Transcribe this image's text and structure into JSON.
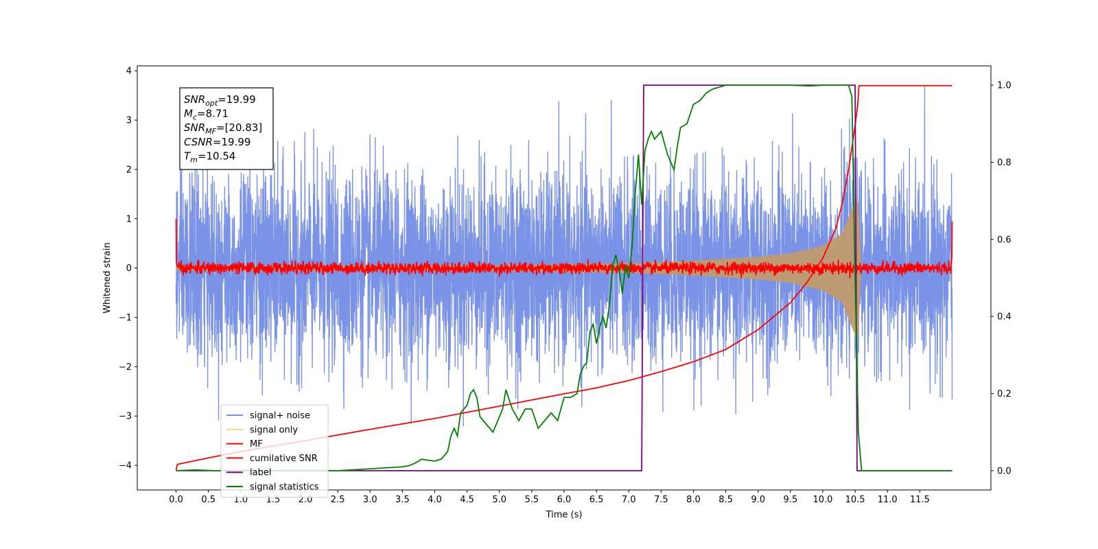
{
  "chart_data": {
    "type": "line",
    "xlabel": "Time (s)",
    "ylabel": "Whitened strain",
    "xlim": [
      -0.6,
      12.6
    ],
    "ylim": [
      -4.5,
      4.1
    ],
    "y2lim": [
      -0.05,
      1.05
    ],
    "x_ticks": [
      "0.0",
      "0.5",
      "1.0",
      "1.5",
      "2.0",
      "2.5",
      "3.0",
      "3.5",
      "4.0",
      "4.5",
      "5.0",
      "5.5",
      "6.0",
      "6.5",
      "7.0",
      "7.5",
      "8.0",
      "8.5",
      "9.0",
      "9.5",
      "10.0",
      "10.5",
      "11.0",
      "11.5"
    ],
    "y_ticks": [
      "4",
      "3",
      "2",
      "1",
      "0",
      "−1",
      "−2",
      "−3",
      "−4"
    ],
    "y2_ticks": [
      "1.0",
      "0.8",
      "0.6",
      "0.4",
      "0.2",
      "0.0"
    ],
    "annotation": {
      "lines": [
        {
          "base": "SNR",
          "sub": "opt",
          "value": "=19.99"
        },
        {
          "base": "M",
          "sub": "c",
          "value": "=8.71"
        },
        {
          "base": "SNR",
          "sub": "MF",
          "value": "=[20.83]"
        },
        {
          "base": "CSNR",
          "sub": "",
          "value": "=19.99"
        },
        {
          "base": "T",
          "sub": "m",
          "value": "=10.54"
        }
      ]
    },
    "legend": {
      "position": "lower-left",
      "entries": [
        {
          "label": "signal+ noise",
          "color": "#7b93e6"
        },
        {
          "label": "signal only",
          "color": "#f8d285"
        },
        {
          "label": "MF",
          "color": "#ff0000"
        },
        {
          "label": "cumilative SNR",
          "color": "#ff0000"
        },
        {
          "label": "label",
          "color": "#800080"
        },
        {
          "label": "signal statistics",
          "color": "#008000"
        }
      ]
    },
    "series": [
      {
        "name": "signal+ noise",
        "axis": "left",
        "color": "#7b93e6",
        "description_values": {
          "x_start": 0.0,
          "x_end": 12.0,
          "typical_range": [
            -2.5,
            2.5
          ],
          "extremes": [
            -4.0,
            3.7
          ]
        }
      },
      {
        "name": "signal only",
        "axis": "left",
        "color": "#c09a6e",
        "envelope": {
          "x": [
            0.0,
            5.0,
            6.0,
            7.0,
            8.0,
            9.0,
            9.5,
            10.0,
            10.3,
            10.45,
            10.54,
            10.6
          ],
          "amplitude": [
            0.05,
            0.06,
            0.08,
            0.1,
            0.15,
            0.23,
            0.3,
            0.45,
            0.7,
            1.2,
            1.5,
            0.0
          ]
        }
      },
      {
        "name": "MF",
        "axis": "left",
        "color": "#ff0000",
        "description_values": {
          "x_start": 0.0,
          "x_end": 12.0,
          "baseline": 0.0,
          "noise_amp": 0.06,
          "edge_peaks": [
            1.0,
            0.95
          ]
        }
      },
      {
        "name": "cumilative SNR",
        "axis": "left",
        "color": "#ff0000",
        "points": [
          [
            0.0,
            -4.1
          ],
          [
            0.02,
            -3.98
          ],
          [
            0.5,
            -3.85
          ],
          [
            1.0,
            -3.72
          ],
          [
            2.0,
            -3.5
          ],
          [
            3.0,
            -3.27
          ],
          [
            4.0,
            -3.05
          ],
          [
            5.0,
            -2.8
          ],
          [
            6.0,
            -2.55
          ],
          [
            6.5,
            -2.43
          ],
          [
            7.0,
            -2.28
          ],
          [
            7.5,
            -2.1
          ],
          [
            8.0,
            -1.9
          ],
          [
            8.5,
            -1.65
          ],
          [
            9.0,
            -1.25
          ],
          [
            9.5,
            -0.7
          ],
          [
            9.75,
            -0.3
          ],
          [
            10.0,
            0.2
          ],
          [
            10.2,
            0.8
          ],
          [
            10.3,
            1.3
          ],
          [
            10.4,
            2.0
          ],
          [
            10.5,
            2.9
          ],
          [
            10.54,
            3.3
          ],
          [
            10.56,
            3.7
          ],
          [
            12.0,
            3.7
          ]
        ]
      },
      {
        "name": "label",
        "axis": "right",
        "color": "#800080",
        "points": [
          [
            0.0,
            0.0
          ],
          [
            7.2,
            0.0
          ],
          [
            7.23,
            1.0
          ],
          [
            10.5,
            1.0
          ],
          [
            10.53,
            0.0
          ],
          [
            12.0,
            0.0
          ]
        ]
      },
      {
        "name": "signal statistics",
        "axis": "right",
        "color": "#008000",
        "points": [
          [
            0.0,
            0.0
          ],
          [
            0.3,
            0.002
          ],
          [
            0.6,
            0.0
          ],
          [
            1.0,
            0.001
          ],
          [
            1.5,
            0.0
          ],
          [
            2.0,
            0.001
          ],
          [
            2.5,
            0.0
          ],
          [
            2.8,
            0.003
          ],
          [
            3.0,
            0.005
          ],
          [
            3.3,
            0.008
          ],
          [
            3.5,
            0.01
          ],
          [
            3.6,
            0.013
          ],
          [
            3.7,
            0.02
          ],
          [
            3.8,
            0.03
          ],
          [
            3.9,
            0.027
          ],
          [
            4.0,
            0.025
          ],
          [
            4.1,
            0.03
          ],
          [
            4.2,
            0.05
          ],
          [
            4.25,
            0.09
          ],
          [
            4.3,
            0.11
          ],
          [
            4.35,
            0.09
          ],
          [
            4.4,
            0.15
          ],
          [
            4.45,
            0.16
          ],
          [
            4.5,
            0.17
          ],
          [
            4.55,
            0.2
          ],
          [
            4.6,
            0.21
          ],
          [
            4.65,
            0.19
          ],
          [
            4.7,
            0.14
          ],
          [
            4.8,
            0.12
          ],
          [
            4.9,
            0.1
          ],
          [
            5.0,
            0.14
          ],
          [
            5.05,
            0.16
          ],
          [
            5.1,
            0.21
          ],
          [
            5.2,
            0.16
          ],
          [
            5.3,
            0.13
          ],
          [
            5.4,
            0.16
          ],
          [
            5.5,
            0.16
          ],
          [
            5.6,
            0.11
          ],
          [
            5.7,
            0.13
          ],
          [
            5.8,
            0.15
          ],
          [
            5.9,
            0.13
          ],
          [
            6.0,
            0.19
          ],
          [
            6.1,
            0.19
          ],
          [
            6.2,
            0.2
          ],
          [
            6.25,
            0.25
          ],
          [
            6.3,
            0.27
          ],
          [
            6.35,
            0.28
          ],
          [
            6.4,
            0.36
          ],
          [
            6.45,
            0.38
          ],
          [
            6.5,
            0.33
          ],
          [
            6.55,
            0.37
          ],
          [
            6.6,
            0.4
          ],
          [
            6.65,
            0.37
          ],
          [
            6.7,
            0.43
          ],
          [
            6.75,
            0.53
          ],
          [
            6.8,
            0.56
          ],
          [
            6.85,
            0.52
          ],
          [
            6.9,
            0.46
          ],
          [
            6.95,
            0.53
          ],
          [
            7.0,
            0.5
          ],
          [
            7.05,
            0.58
          ],
          [
            7.1,
            0.72
          ],
          [
            7.15,
            0.82
          ],
          [
            7.2,
            0.69
          ],
          [
            7.25,
            0.83
          ],
          [
            7.3,
            0.86
          ],
          [
            7.35,
            0.88
          ],
          [
            7.4,
            0.86
          ],
          [
            7.5,
            0.88
          ],
          [
            7.6,
            0.82
          ],
          [
            7.7,
            0.78
          ],
          [
            7.75,
            0.84
          ],
          [
            7.8,
            0.89
          ],
          [
            7.9,
            0.9
          ],
          [
            8.0,
            0.95
          ],
          [
            8.1,
            0.96
          ],
          [
            8.2,
            0.98
          ],
          [
            8.3,
            0.99
          ],
          [
            8.5,
            1.0
          ],
          [
            8.7,
            1.0
          ],
          [
            9.0,
            1.0
          ],
          [
            9.2,
            1.0
          ],
          [
            9.5,
            1.0
          ],
          [
            9.8,
            0.998
          ],
          [
            10.0,
            1.0
          ],
          [
            10.3,
            1.0
          ],
          [
            10.4,
            1.0
          ],
          [
            10.45,
            0.97
          ],
          [
            10.5,
            0.5
          ],
          [
            10.55,
            0.1
          ],
          [
            10.6,
            0.0
          ],
          [
            11.0,
            0.0
          ],
          [
            12.0,
            0.0
          ]
        ]
      }
    ]
  }
}
